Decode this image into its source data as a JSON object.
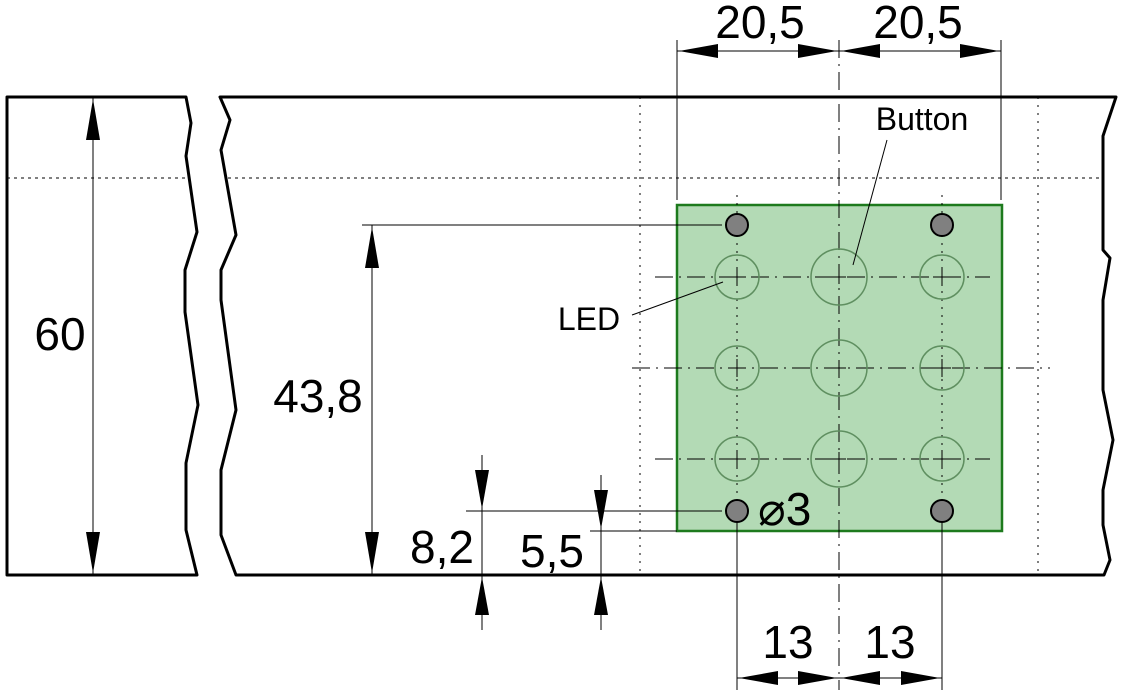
{
  "dimensions": {
    "height_total": "60",
    "height_holes": "43,8",
    "offset_bottom_holes": "8,2",
    "offset_plate_edge": "5,5",
    "pitch_top_left": "20,5",
    "pitch_top_right": "20,5",
    "pitch_bottom_left": "13",
    "pitch_bottom_right": "13",
    "hole_diameter": "⌀3"
  },
  "labels": {
    "button": "Button",
    "led": "LED"
  },
  "colors": {
    "plate_fill": "#b3dab5",
    "plate_border": "#1d7a1d",
    "hole_fill": "#808080"
  }
}
